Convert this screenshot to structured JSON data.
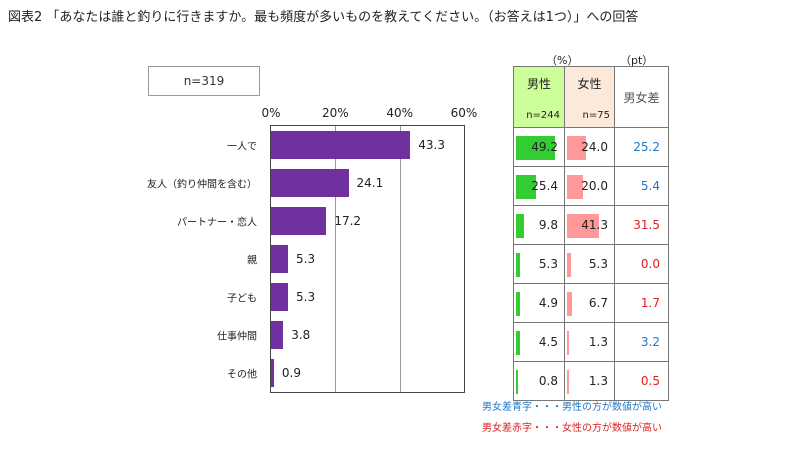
{
  "title": "図表2 「あなたは誰と釣りに行きますか。最も頻度が多いものを教えてください。（お答えは1つ）」への回答",
  "sample": "n=319",
  "chart_data": {
    "type": "bar",
    "orientation": "horizontal",
    "categories": [
      "一人で",
      "友人（釣り仲間を含む）",
      "パートナー・恋人",
      "親",
      "子ども",
      "仕事仲間",
      "その他"
    ],
    "values": [
      43.3,
      24.1,
      17.2,
      5.3,
      5.3,
      3.8,
      0.9
    ],
    "value_labels": [
      "43.3",
      "24.1",
      "17.2",
      "5.3",
      "5.3",
      "3.8",
      "0.9"
    ],
    "xlim": [
      0,
      60
    ],
    "ticks": [
      "0%",
      "20%",
      "40%",
      "60%"
    ],
    "tick_values": [
      0,
      20,
      40,
      60
    ],
    "grid": true
  },
  "table": {
    "unit_pct": "（%）",
    "unit_pt": "（pt）",
    "headers": {
      "male": "男性",
      "male_n": "n=244",
      "female": "女性",
      "female_n": "n=75",
      "diff": "男女差"
    },
    "rows": [
      {
        "male": 49.2,
        "male_label": "49.2",
        "female": 24.0,
        "female_label": "24.0",
        "diff": "25.2",
        "diff_color": "#1f77c8"
      },
      {
        "male": 25.4,
        "male_label": "25.4",
        "female": 20.0,
        "female_label": "20.0",
        "diff": "5.4",
        "diff_color": "#1f77c8"
      },
      {
        "male": 9.8,
        "male_label": "9.8",
        "female": 41.3,
        "female_label": "41.3",
        "diff": "31.5",
        "diff_color": "#e02020"
      },
      {
        "male": 5.3,
        "male_label": "5.3",
        "female": 5.3,
        "female_label": "5.3",
        "diff": "0.0",
        "diff_color": "#e02020"
      },
      {
        "male": 4.9,
        "male_label": "4.9",
        "female": 6.7,
        "female_label": "6.7",
        "diff": "1.7",
        "diff_color": "#e02020"
      },
      {
        "male": 4.5,
        "male_label": "4.5",
        "female": 1.3,
        "female_label": "1.3",
        "diff": "3.2",
        "diff_color": "#1f77c8"
      },
      {
        "male": 0.8,
        "male_label": "0.8",
        "female": 1.3,
        "female_label": "1.3",
        "diff": "0.5",
        "diff_color": "#e02020"
      }
    ],
    "scale_max": 60
  },
  "notes": {
    "blue": "男女差青字・・・男性の方が数値が高い",
    "red": "男女差赤字・・・女性の方が数値が高い",
    "blue_color": "#1f77c8",
    "red_color": "#e02020"
  },
  "colors": {
    "bar": "#7030a0",
    "male_bar": "#33cc33",
    "female_bar": "#ff9999"
  }
}
